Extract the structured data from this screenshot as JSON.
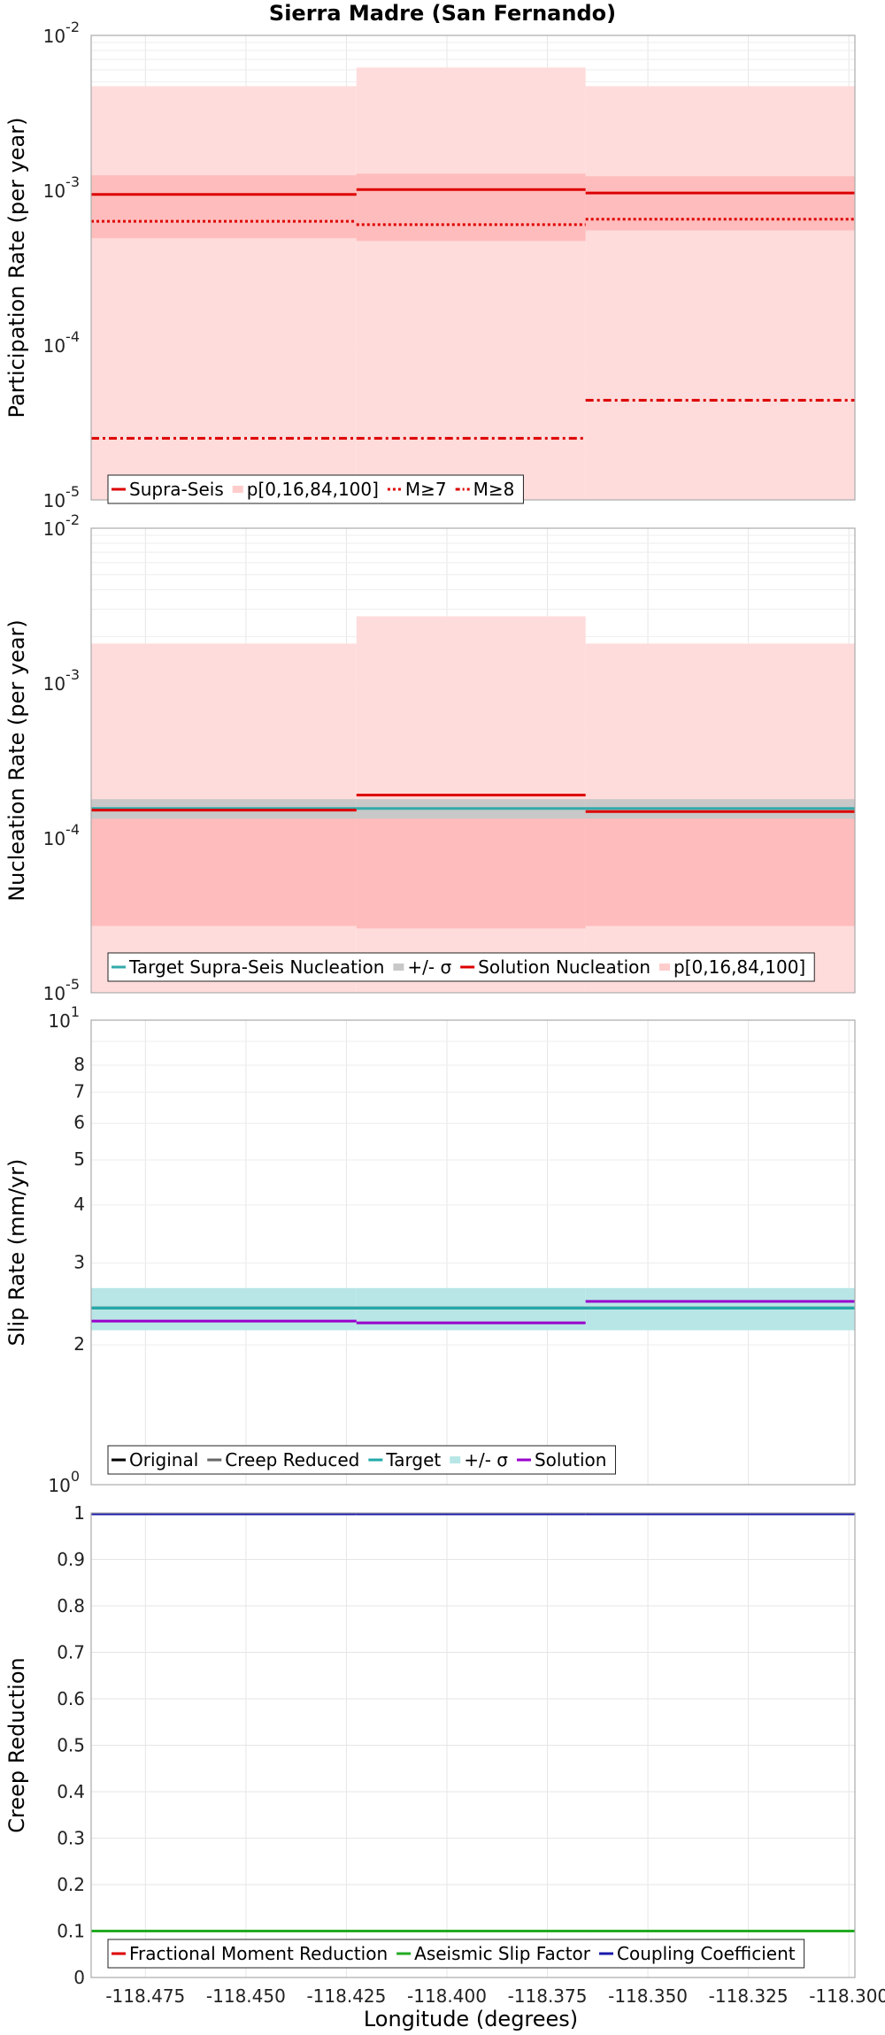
{
  "chart_data": [
    {
      "type": "line",
      "title": "Sierra Madre (San Fernando)",
      "ylabel": "Participation Rate (per year)",
      "yscale": "log",
      "ylim": [
        1e-05,
        0.01
      ],
      "xlim": [
        -118.4885,
        -118.2985
      ],
      "segment_edges": [
        -118.4885,
        -118.4225,
        -118.3655,
        -118.2985
      ],
      "grid": true,
      "legend": {
        "placement": "bottom-left",
        "entries": [
          {
            "label": "Supra-Seis",
            "color": "#dd0000",
            "style": "solid"
          },
          {
            "label": "p[0,16,84,100]",
            "color": "#ffcccc",
            "style": "band"
          },
          {
            "label": "M≥7",
            "color": "#dd0000",
            "style": "dotted"
          },
          {
            "label": "M≥8",
            "color": "#dd0000",
            "style": "dashdot"
          }
        ]
      },
      "bands": [
        {
          "name": "p[0,100]",
          "color": "#ffdcdc",
          "lower": [
            1e-05,
            1e-05,
            1e-05
          ],
          "upper": [
            0.0047,
            0.0062,
            0.0047
          ]
        },
        {
          "name": "p[16,84]",
          "color": "#ffbcbc",
          "lower": [
            0.00049,
            0.00047,
            0.00055
          ],
          "upper": [
            0.00125,
            0.00128,
            0.00123
          ]
        }
      ],
      "series": [
        {
          "name": "Supra-Seis",
          "color": "#dd0000",
          "style": "solid",
          "values": [
            0.00094,
            0.00101,
            0.00096
          ]
        },
        {
          "name": "M≥7",
          "color": "#dd0000",
          "style": "dotted",
          "values": [
            0.00063,
            0.0006,
            0.00065
          ]
        },
        {
          "name": "M≥8",
          "color": "#dd0000",
          "style": "dashdot",
          "values": [
            2.5e-05,
            2.5e-05,
            4.4e-05
          ]
        }
      ]
    },
    {
      "type": "line",
      "ylabel": "Nucleation Rate (per year)",
      "yscale": "log",
      "ylim": [
        1e-05,
        0.01
      ],
      "xlim": [
        -118.4885,
        -118.2985
      ],
      "segment_edges": [
        -118.4885,
        -118.4225,
        -118.3655,
        -118.2985
      ],
      "grid": true,
      "legend": {
        "placement": "bottom-left",
        "entries": [
          {
            "label": "Target Supra-Seis Nucleation",
            "color": "#33aaaa",
            "style": "solid"
          },
          {
            "label": "+/- σ",
            "color": "#c8c8c8",
            "style": "band"
          },
          {
            "label": "Solution Nucleation",
            "color": "#dd0000",
            "style": "solid"
          },
          {
            "label": "p[0,16,84,100]",
            "color": "#ffcccc",
            "style": "band"
          }
        ]
      },
      "bands": [
        {
          "name": "p[0,100]",
          "color": "#ffdcdc",
          "lower": [
            1e-05,
            1e-05,
            1e-05
          ],
          "upper": [
            0.0018,
            0.0027,
            0.0018
          ]
        },
        {
          "name": "p[16,84]",
          "color": "#ffbcbc",
          "lower": [
            2.7e-05,
            2.6e-05,
            2.7e-05
          ],
          "upper": [
            0.000142,
            0.000142,
            0.000142
          ]
        },
        {
          "name": "+/- σ",
          "color": "#c8c8c8",
          "lower": [
            0.000133,
            0.000133,
            0.000133
          ],
          "upper": [
            0.000178,
            0.000178,
            0.000178
          ]
        }
      ],
      "series": [
        {
          "name": "Target Supra-Seis Nucleation",
          "color": "#33aaaa",
          "style": "solid",
          "values": [
            0.000155,
            0.000155,
            0.000155
          ]
        },
        {
          "name": "Solution Nucleation",
          "color": "#dd0000",
          "style": "solid",
          "values": [
            0.000151,
            0.000189,
            0.000148
          ]
        }
      ]
    },
    {
      "type": "line",
      "ylabel": "Slip Rate (mm/yr)",
      "yscale": "log",
      "ylim": [
        1,
        10
      ],
      "xlim": [
        -118.4885,
        -118.2985
      ],
      "segment_edges": [
        -118.4885,
        -118.4225,
        -118.3655,
        -118.2985
      ],
      "grid": true,
      "minor_ticks": [
        "2",
        "3",
        "4",
        "5",
        "6",
        "7",
        "8"
      ],
      "legend": {
        "placement": "bottom-left",
        "entries": [
          {
            "label": "Original",
            "color": "#000000",
            "style": "solid"
          },
          {
            "label": "Creep Reduced",
            "color": "#666666",
            "style": "solid"
          },
          {
            "label": "Target",
            "color": "#22aaaa",
            "style": "solid"
          },
          {
            "label": "+/- σ",
            "color": "#b8e6e6",
            "style": "band"
          },
          {
            "label": "Solution",
            "color": "#9900cc",
            "style": "solid"
          }
        ]
      },
      "bands": [
        {
          "name": "+/- σ",
          "color": "#b8e6e6",
          "lower": [
            2.15,
            2.15,
            2.15
          ],
          "upper": [
            2.65,
            2.65,
            2.65
          ]
        }
      ],
      "series": [
        {
          "name": "Original",
          "color": "#000000",
          "style": "solid",
          "values": [
            2.4,
            2.4,
            2.4
          ]
        },
        {
          "name": "Creep Reduced",
          "color": "#666666",
          "style": "solid",
          "values": [
            2.4,
            2.4,
            2.4
          ]
        },
        {
          "name": "Target",
          "color": "#22aaaa",
          "style": "solid",
          "values": [
            2.4,
            2.4,
            2.4
          ]
        },
        {
          "name": "Solution",
          "color": "#9900cc",
          "style": "solid",
          "values": [
            2.25,
            2.23,
            2.48
          ]
        }
      ]
    },
    {
      "type": "line",
      "ylabel": "Creep Reduction",
      "xlabel": "Longitude (degrees)",
      "yscale": "linear",
      "ylim": [
        0,
        1
      ],
      "xlim": [
        -118.4885,
        -118.2985
      ],
      "segment_edges": [
        -118.4885,
        -118.4225,
        -118.3655,
        -118.2985
      ],
      "grid": true,
      "yticks": [
        "0",
        "0.1",
        "0.2",
        "0.3",
        "0.4",
        "0.5",
        "0.6",
        "0.7",
        "0.8",
        "0.9",
        "1"
      ],
      "xticks": [
        "-118.475",
        "-118.450",
        "-118.425",
        "-118.400",
        "-118.375",
        "-118.350",
        "-118.325",
        "-118.300"
      ],
      "legend": {
        "placement": "bottom-left",
        "entries": [
          {
            "label": "Fractional Moment Reduction",
            "color": "#dd0000",
            "style": "solid"
          },
          {
            "label": "Aseismic Slip Factor",
            "color": "#22aa22",
            "style": "solid"
          },
          {
            "label": "Coupling Coefficient",
            "color": "#1a1aaa",
            "style": "solid"
          }
        ]
      },
      "bands": [],
      "series": [
        {
          "name": "Fractional Moment Reduction",
          "color": "#dd0000",
          "style": "solid",
          "values": [
            0.1,
            0.1,
            0.1
          ]
        },
        {
          "name": "Aseismic Slip Factor",
          "color": "#22aa22",
          "style": "solid",
          "values": [
            0.1,
            0.1,
            0.1
          ]
        },
        {
          "name": "Coupling Coefficient",
          "color": "#1a1aaa",
          "style": "solid",
          "values": [
            1,
            1,
            1
          ]
        }
      ]
    }
  ]
}
